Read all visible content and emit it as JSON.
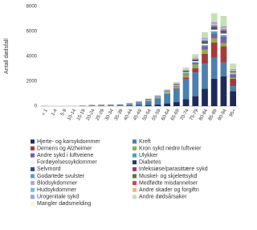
{
  "chart_data": {
    "type": "stacked_bar",
    "ylabel": "Antall dødsfall",
    "categories": [
      "< 1",
      "1-4",
      "5-9",
      "10-14",
      "15-19",
      "20-24",
      "25-29",
      "30-34",
      "35-39",
      "40-44",
      "45-49",
      "50-54",
      "55-59",
      "60-64",
      "65-69",
      "70-74",
      "75-79",
      "80-84",
      "85-89",
      "90-94",
      "95+"
    ],
    "ylim": [
      0,
      8000
    ],
    "yticks": [
      0,
      2000,
      4000,
      6000,
      8000
    ],
    "grid": false,
    "series": [
      {
        "name": "Hjerte- og karsykdommer",
        "color": "#1f2a5a",
        "values": [
          2,
          0,
          0,
          1,
          3,
          5,
          6,
          8,
          12,
          25,
          50,
          90,
          140,
          220,
          320,
          550,
          800,
          1400,
          2200,
          2400,
          1200
        ]
      },
      {
        "name": "Kreft",
        "color": "#4a7fb0",
        "values": [
          1,
          2,
          4,
          4,
          6,
          10,
          15,
          25,
          45,
          100,
          180,
          320,
          480,
          750,
          1050,
          1600,
          1900,
          2000,
          1700,
          1100,
          400
        ]
      },
      {
        "name": "Demens og Alzheimer",
        "color": "#a63a3a",
        "values": [
          0,
          0,
          0,
          0,
          0,
          0,
          0,
          0,
          0,
          0,
          2,
          5,
          10,
          20,
          50,
          150,
          350,
          800,
          1200,
          1300,
          600
        ]
      },
      {
        "name": "Kron sykd nedre luftveier",
        "color": "#8db04a",
        "values": [
          0,
          0,
          0,
          0,
          0,
          0,
          0,
          1,
          2,
          4,
          10,
          25,
          50,
          100,
          150,
          250,
          300,
          350,
          350,
          250,
          90
        ]
      },
      {
        "name": "Andre sykd i luftveiene",
        "color": "#7b5ea7",
        "values": [
          1,
          0,
          0,
          0,
          0,
          1,
          1,
          1,
          2,
          4,
          6,
          10,
          15,
          25,
          45,
          80,
          130,
          250,
          400,
          500,
          250
        ]
      },
      {
        "name": "Ulykker",
        "color": "#45a5c0",
        "values": [
          2,
          3,
          3,
          3,
          10,
          20,
          20,
          18,
          18,
          20,
          22,
          25,
          25,
          30,
          35,
          45,
          60,
          100,
          150,
          150,
          80
        ]
      },
      {
        "name": "Fordøyelsessykdommer",
        "color": "#f4f4f4",
        "values": [
          0,
          0,
          0,
          0,
          0,
          1,
          2,
          3,
          5,
          10,
          15,
          20,
          25,
          35,
          45,
          60,
          80,
          120,
          150,
          140,
          70
        ]
      },
      {
        "name": "Diabetes",
        "color": "#1f3864",
        "values": [
          0,
          0,
          0,
          0,
          0,
          1,
          1,
          1,
          2,
          3,
          5,
          8,
          12,
          20,
          30,
          45,
          60,
          90,
          100,
          80,
          30
        ]
      },
      {
        "name": "Selvmord",
        "color": "#2e4b8c",
        "values": [
          0,
          0,
          0,
          2,
          25,
          50,
          50,
          50,
          45,
          50,
          55,
          50,
          40,
          35,
          25,
          20,
          15,
          15,
          10,
          5,
          2
        ]
      },
      {
        "name": "Infeksiøse/parasittære sykd",
        "color": "#9c3a6b",
        "values": [
          1,
          0,
          0,
          0,
          0,
          1,
          1,
          1,
          2,
          3,
          5,
          8,
          10,
          15,
          25,
          40,
          60,
          100,
          140,
          150,
          70
        ]
      },
      {
        "name": "Godartede svulster",
        "color": "#5b9bd5",
        "values": [
          0,
          0,
          0,
          0,
          0,
          0,
          0,
          1,
          1,
          2,
          3,
          5,
          7,
          10,
          15,
          25,
          35,
          50,
          60,
          55,
          25
        ]
      },
      {
        "name": "Muskel- og skjelettsykd",
        "color": "#5a7a2e",
        "values": [
          0,
          0,
          0,
          0,
          0,
          0,
          0,
          0,
          1,
          1,
          2,
          3,
          5,
          8,
          10,
          15,
          20,
          30,
          40,
          40,
          20
        ]
      },
      {
        "name": "Blodsykdommer",
        "color": "#b4a7d6",
        "values": [
          0,
          0,
          0,
          0,
          0,
          0,
          0,
          0,
          1,
          1,
          1,
          2,
          3,
          4,
          6,
          8,
          12,
          15,
          20,
          20,
          10
        ]
      },
      {
        "name": "Medfødte misdannelser",
        "color": "#c0504d",
        "values": [
          15,
          2,
          1,
          1,
          1,
          1,
          1,
          1,
          1,
          1,
          1,
          2,
          2,
          2,
          2,
          2,
          2,
          1,
          1,
          1,
          0
        ]
      },
      {
        "name": "Hudsykdommer",
        "color": "#76c0d0",
        "values": [
          0,
          0,
          0,
          0,
          0,
          0,
          0,
          0,
          0,
          0,
          0,
          1,
          1,
          2,
          3,
          5,
          8,
          12,
          18,
          20,
          12
        ]
      },
      {
        "name": "Andre skader og forgiftn",
        "color": "#f4b183",
        "values": [
          1,
          1,
          1,
          1,
          8,
          15,
          18,
          18,
          15,
          20,
          20,
          20,
          20,
          20,
          20,
          25,
          30,
          45,
          60,
          60,
          30
        ]
      },
      {
        "name": "Urogenitale sykd",
        "color": "#8ea9db",
        "values": [
          0,
          0,
          0,
          0,
          0,
          0,
          0,
          0,
          1,
          1,
          2,
          4,
          6,
          10,
          15,
          30,
          50,
          100,
          150,
          160,
          80
        ]
      },
      {
        "name": "Andre dødsårsaker",
        "color": "#c5e0b4",
        "values": [
          5,
          1,
          1,
          1,
          3,
          5,
          5,
          6,
          8,
          10,
          15,
          25,
          40,
          60,
          90,
          150,
          250,
          450,
          700,
          800,
          450
        ]
      },
      {
        "name": "Mangler dødsmelding",
        "color": "#fff2cc",
        "values": [
          1,
          1,
          0,
          0,
          2,
          3,
          3,
          3,
          3,
          5,
          6,
          8,
          10,
          10,
          12,
          15,
          20,
          25,
          30,
          30,
          15
        ]
      }
    ]
  }
}
